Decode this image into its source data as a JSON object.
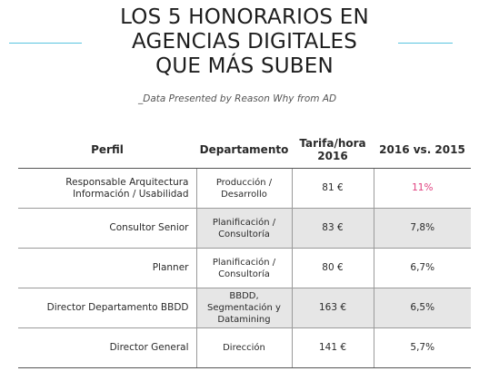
{
  "title": {
    "line1": "LOS 5 HONORARIOS EN",
    "line2": "AGENCIAS DIGITALES",
    "line3": "QUE MÁS SUBEN"
  },
  "subtitle": "_Data Presented by Reason Why from AD",
  "colors": {
    "accent_line": "#58c4e0",
    "highlight": "#e0407f",
    "shaded_row": "#e6e6e6"
  },
  "table": {
    "headers": {
      "perfil": "Perfil",
      "departamento": "Departamento",
      "tarifa_line1": "Tarifa/hora",
      "tarifa_line2": "2016",
      "variacion": "2016 vs. 2015"
    },
    "rows": [
      {
        "perfil_line1": "Responsable Arquitectura",
        "perfil_line2": "Información / Usabilidad",
        "dept_line1": "Producción /",
        "dept_line2": "Desarrollo",
        "tarifa": "81 €",
        "variacion": "11%"
      },
      {
        "perfil_line1": "Consultor Senior",
        "perfil_line2": "",
        "dept_line1": "Planificación /",
        "dept_line2": "Consultoría",
        "tarifa": "83 €",
        "variacion": "7,8%"
      },
      {
        "perfil_line1": "Planner",
        "perfil_line2": "",
        "dept_line1": "Planificación /",
        "dept_line2": "Consultoría",
        "tarifa": "80 €",
        "variacion": "6,7%"
      },
      {
        "perfil_line1": "Director Departamento BBDD",
        "perfil_line2": "",
        "dept_line1": "BBDD, Segmentación y",
        "dept_line2": "Datamining",
        "tarifa": "163 €",
        "variacion": "6,5%"
      },
      {
        "perfil_line1": "Director General",
        "perfil_line2": "",
        "dept_line1": "Dirección",
        "dept_line2": "",
        "tarifa": "141 €",
        "variacion": "5,7%"
      }
    ]
  }
}
